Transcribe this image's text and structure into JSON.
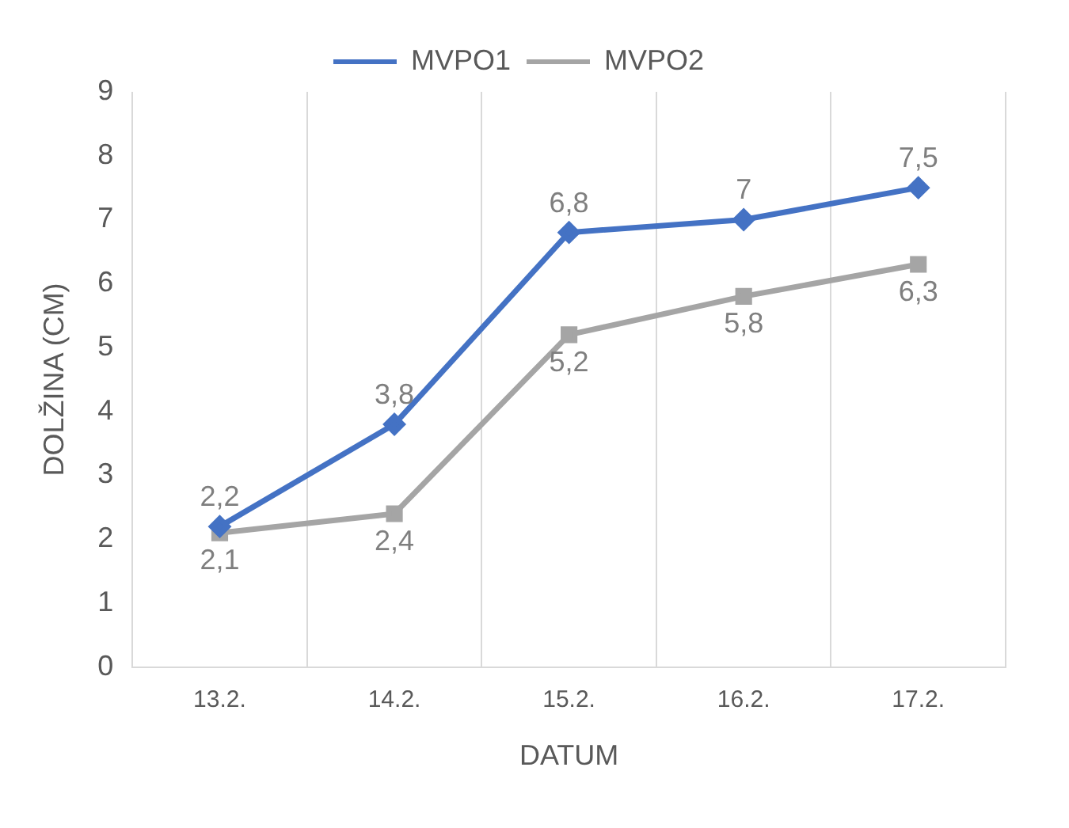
{
  "chart_data": {
    "type": "line",
    "xlabel": "DATUM",
    "ylabel": "DOLŽINA (CM)",
    "categories": [
      "13.2.",
      "14.2.",
      "15.2.",
      "16.2.",
      "17.2."
    ],
    "series": [
      {
        "name": "MVPO1",
        "color": "#4472c4",
        "marker": "diamond",
        "values": [
          2.2,
          3.8,
          6.8,
          7,
          7.5
        ],
        "value_labels": [
          "2,2",
          "3,8",
          "6,8",
          "7",
          "7,5"
        ]
      },
      {
        "name": "MVPO2",
        "color": "#a5a5a5",
        "marker": "square",
        "values": [
          2.1,
          2.4,
          5.2,
          5.8,
          6.3
        ],
        "value_labels": [
          "2,1",
          "2,4",
          "5,2",
          "5,8",
          "6,3"
        ]
      }
    ],
    "ylim": [
      0,
      9
    ],
    "yticks": [
      0,
      1,
      2,
      3,
      4,
      5,
      6,
      7,
      8,
      9
    ],
    "grid": "x",
    "legend": "top",
    "line_style": "solid"
  }
}
